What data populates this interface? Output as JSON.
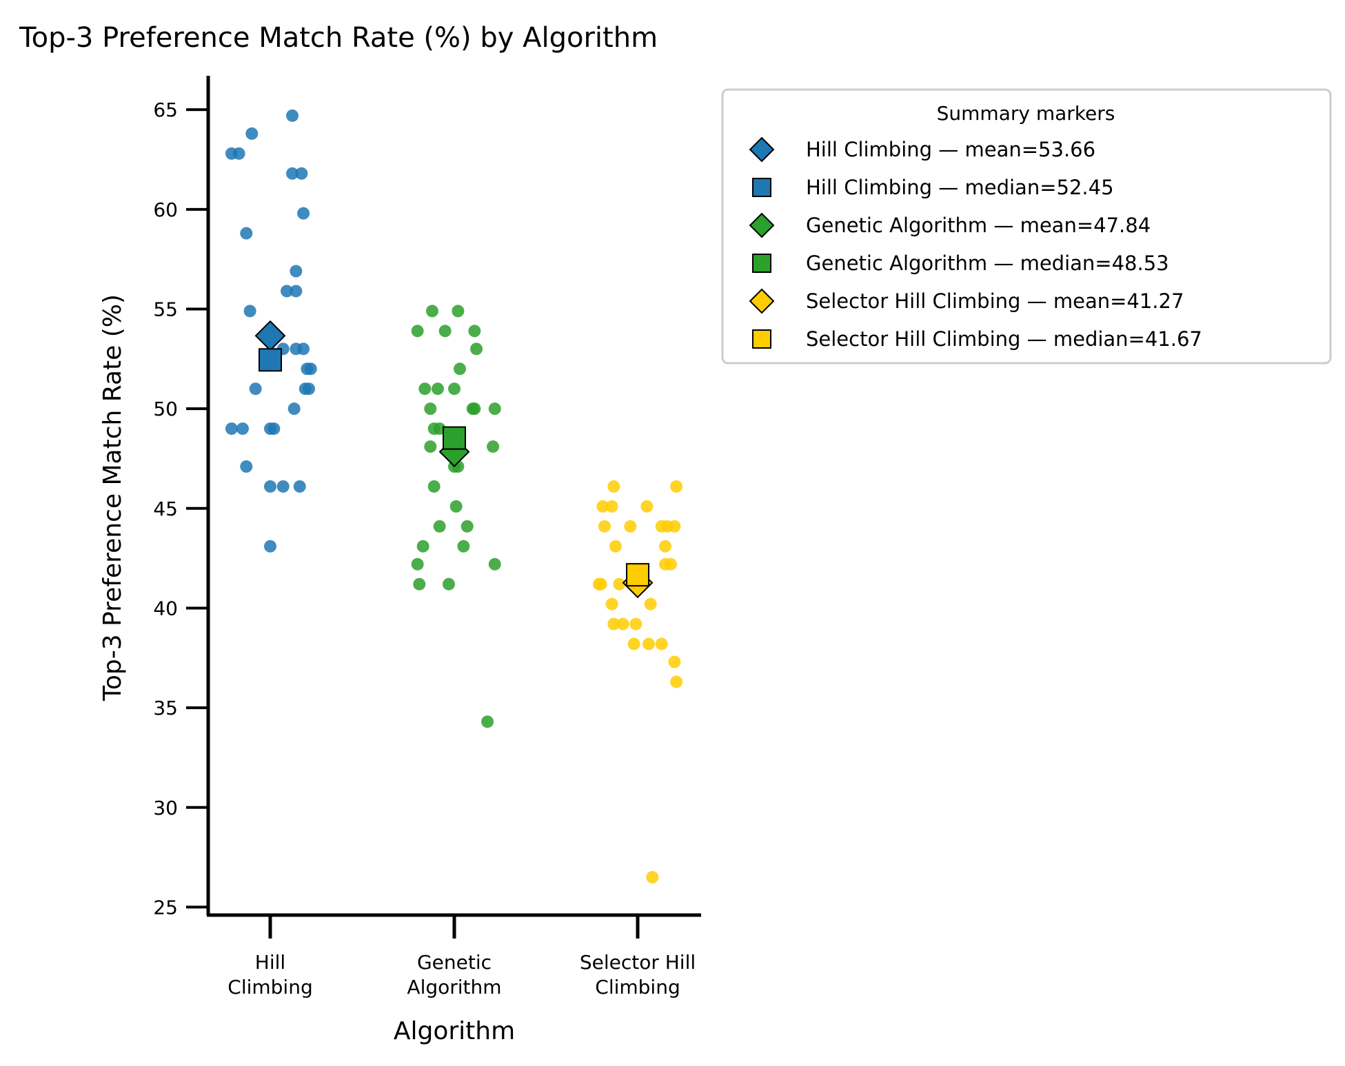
{
  "chart_data": {
    "type": "scatter",
    "title": "Top-3 Preference Match Rate (%) by Algorithm",
    "xlabel": "Algorithm",
    "ylabel": "Top-3 Preference Match Rate (%)",
    "ylim": [
      24.6,
      66.7
    ],
    "yticks": [
      25,
      30,
      35,
      40,
      45,
      50,
      55,
      60,
      65
    ],
    "grid": false,
    "legend_position": "upper right, outside plot",
    "categories": [
      {
        "label_lines": [
          "Hill",
          "Climbing"
        ]
      },
      {
        "label_lines": [
          "Genetic",
          "Algorithm"
        ]
      },
      {
        "label_lines": [
          "Selector Hill",
          "Climbing"
        ]
      }
    ],
    "series": [
      {
        "name": "Hill Climbing",
        "color": "#1f77b4",
        "points": [
          {
            "offset": -0.21,
            "y": 62.8
          },
          {
            "offset": -0.17,
            "y": 62.8
          },
          {
            "offset": -0.1,
            "y": 63.8
          },
          {
            "offset": 0.12,
            "y": 64.7
          },
          {
            "offset": 0.12,
            "y": 61.8
          },
          {
            "offset": 0.17,
            "y": 61.8
          },
          {
            "offset": 0.18,
            "y": 59.8
          },
          {
            "offset": -0.13,
            "y": 58.8
          },
          {
            "offset": 0.14,
            "y": 56.9
          },
          {
            "offset": 0.09,
            "y": 55.9
          },
          {
            "offset": 0.14,
            "y": 55.9
          },
          {
            "offset": -0.11,
            "y": 54.9
          },
          {
            "offset": 0.07,
            "y": 53.0
          },
          {
            "offset": 0.14,
            "y": 53.0
          },
          {
            "offset": 0.18,
            "y": 53.0
          },
          {
            "offset": 0.2,
            "y": 52.0
          },
          {
            "offset": 0.22,
            "y": 52.0
          },
          {
            "offset": -0.08,
            "y": 51.0
          },
          {
            "offset": 0.19,
            "y": 51.0
          },
          {
            "offset": 0.21,
            "y": 51.0
          },
          {
            "offset": 0.13,
            "y": 50.0
          },
          {
            "offset": -0.21,
            "y": 49.0
          },
          {
            "offset": -0.15,
            "y": 49.0
          },
          {
            "offset": 0.0,
            "y": 49.0
          },
          {
            "offset": 0.02,
            "y": 49.0
          },
          {
            "offset": -0.13,
            "y": 47.1
          },
          {
            "offset": 0.0,
            "y": 46.1
          },
          {
            "offset": 0.07,
            "y": 46.1
          },
          {
            "offset": 0.16,
            "y": 46.1
          },
          {
            "offset": 0.0,
            "y": 43.1
          }
        ],
        "mean": 53.66,
        "median": 52.45
      },
      {
        "name": "Genetic Algorithm",
        "color": "#2ca02c",
        "points": [
          {
            "offset": -0.12,
            "y": 54.9
          },
          {
            "offset": 0.02,
            "y": 54.9
          },
          {
            "offset": -0.2,
            "y": 53.9
          },
          {
            "offset": -0.05,
            "y": 53.9
          },
          {
            "offset": 0.11,
            "y": 53.9
          },
          {
            "offset": 0.12,
            "y": 53.0
          },
          {
            "offset": 0.03,
            "y": 52.0
          },
          {
            "offset": -0.16,
            "y": 51.0
          },
          {
            "offset": -0.09,
            "y": 51.0
          },
          {
            "offset": 0.0,
            "y": 51.0
          },
          {
            "offset": -0.13,
            "y": 50.0
          },
          {
            "offset": 0.1,
            "y": 50.0
          },
          {
            "offset": 0.11,
            "y": 50.0
          },
          {
            "offset": 0.22,
            "y": 50.0
          },
          {
            "offset": -0.11,
            "y": 49.0
          },
          {
            "offset": -0.08,
            "y": 49.0
          },
          {
            "offset": -0.13,
            "y": 48.1
          },
          {
            "offset": 0.21,
            "y": 48.1
          },
          {
            "offset": 0.0,
            "y": 47.1
          },
          {
            "offset": 0.02,
            "y": 47.1
          },
          {
            "offset": -0.11,
            "y": 46.1
          },
          {
            "offset": 0.01,
            "y": 45.1
          },
          {
            "offset": -0.08,
            "y": 44.1
          },
          {
            "offset": 0.07,
            "y": 44.1
          },
          {
            "offset": -0.17,
            "y": 43.1
          },
          {
            "offset": 0.05,
            "y": 43.1
          },
          {
            "offset": -0.2,
            "y": 42.2
          },
          {
            "offset": 0.22,
            "y": 42.2
          },
          {
            "offset": -0.19,
            "y": 41.2
          },
          {
            "offset": -0.03,
            "y": 41.2
          },
          {
            "offset": 0.18,
            "y": 34.3
          }
        ],
        "mean": 47.84,
        "median": 48.53
      },
      {
        "name": "Selector Hill Climbing",
        "color": "#ffcc00",
        "points": [
          {
            "offset": -0.13,
            "y": 46.1
          },
          {
            "offset": 0.21,
            "y": 46.1
          },
          {
            "offset": -0.19,
            "y": 45.1
          },
          {
            "offset": -0.14,
            "y": 45.1
          },
          {
            "offset": 0.05,
            "y": 45.1
          },
          {
            "offset": -0.18,
            "y": 44.1
          },
          {
            "offset": -0.04,
            "y": 44.1
          },
          {
            "offset": 0.13,
            "y": 44.1
          },
          {
            "offset": 0.16,
            "y": 44.1
          },
          {
            "offset": 0.2,
            "y": 44.1
          },
          {
            "offset": -0.12,
            "y": 43.1
          },
          {
            "offset": 0.15,
            "y": 43.1
          },
          {
            "offset": 0.15,
            "y": 42.2
          },
          {
            "offset": 0.18,
            "y": 42.2
          },
          {
            "offset": -0.2,
            "y": 41.2
          },
          {
            "offset": -0.21,
            "y": 41.2
          },
          {
            "offset": -0.1,
            "y": 41.2
          },
          {
            "offset": 0.02,
            "y": 41.2
          },
          {
            "offset": -0.14,
            "y": 40.2
          },
          {
            "offset": 0.07,
            "y": 40.2
          },
          {
            "offset": -0.13,
            "y": 39.2
          },
          {
            "offset": -0.08,
            "y": 39.2
          },
          {
            "offset": -0.01,
            "y": 39.2
          },
          {
            "offset": -0.02,
            "y": 38.2
          },
          {
            "offset": 0.06,
            "y": 38.2
          },
          {
            "offset": 0.13,
            "y": 38.2
          },
          {
            "offset": 0.2,
            "y": 37.3
          },
          {
            "offset": 0.21,
            "y": 36.3
          },
          {
            "offset": 0.08,
            "y": 26.5
          }
        ],
        "mean": 41.27,
        "median": 41.67
      }
    ],
    "legend": {
      "title": "Summary markers",
      "entries": [
        {
          "label": "Hill Climbing — mean=53.66",
          "marker": "diamond",
          "color": "#1f77b4"
        },
        {
          "label": "Hill Climbing — median=52.45",
          "marker": "square",
          "color": "#1f77b4"
        },
        {
          "label": "Genetic Algorithm — mean=47.84",
          "marker": "diamond",
          "color": "#2ca02c"
        },
        {
          "label": "Genetic Algorithm — median=48.53",
          "marker": "square",
          "color": "#2ca02c"
        },
        {
          "label": "Selector Hill Climbing — mean=41.27",
          "marker": "diamond",
          "color": "#ffcc00"
        },
        {
          "label": "Selector Hill Climbing — median=41.67",
          "marker": "square",
          "color": "#ffcc00"
        }
      ]
    }
  }
}
